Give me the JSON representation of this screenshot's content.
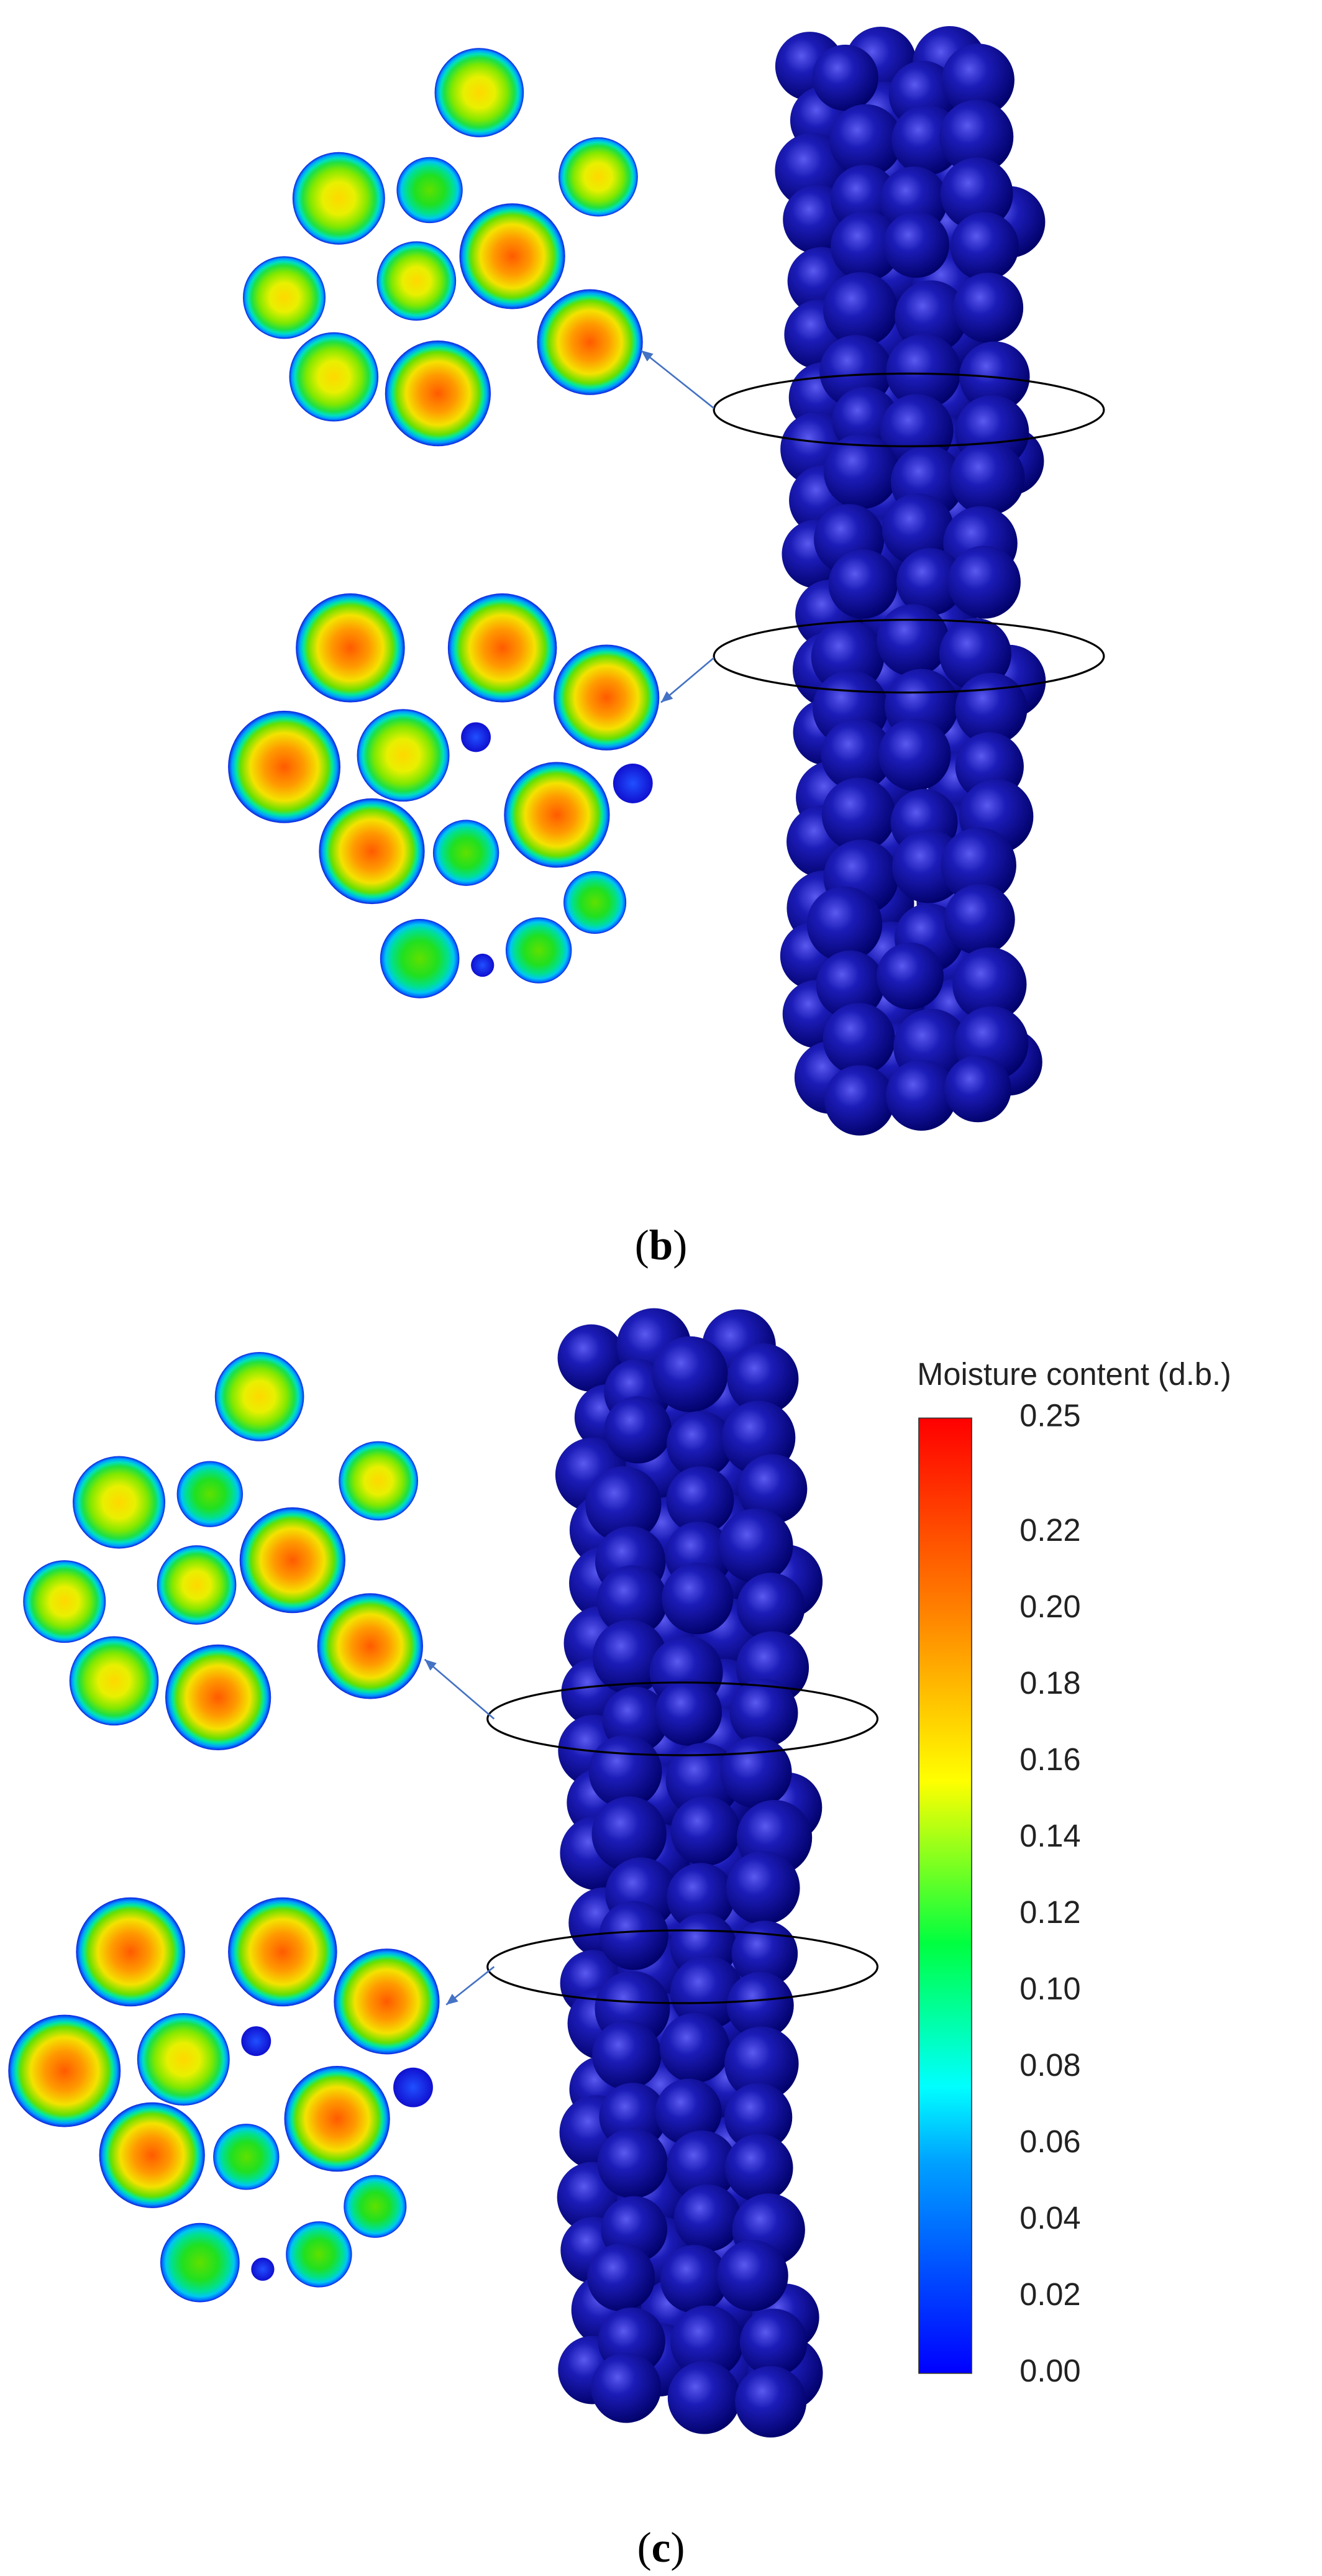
{
  "panels": [
    {
      "label_parts": [
        "(",
        "b",
        ")"
      ]
    },
    {
      "label_parts": [
        "(",
        "c",
        ")"
      ]
    }
  ],
  "colorbar": {
    "title": "Moisture content (d.b.)",
    "range": [
      0,
      0.25
    ],
    "ticks": [
      0.25,
      0.22,
      {
        "value": 0.2,
        "label": "0.20"
      },
      {
        "value": 0.18,
        "label": "0.18"
      },
      0.16,
      0.14,
      0.12,
      {
        "value": 0.1,
        "label": "0.10"
      },
      {
        "value": 0.08,
        "label": "0.08"
      },
      0.06,
      0.04,
      0.02,
      {
        "value": 0,
        "label": "0.00"
      }
    ]
  }
}
